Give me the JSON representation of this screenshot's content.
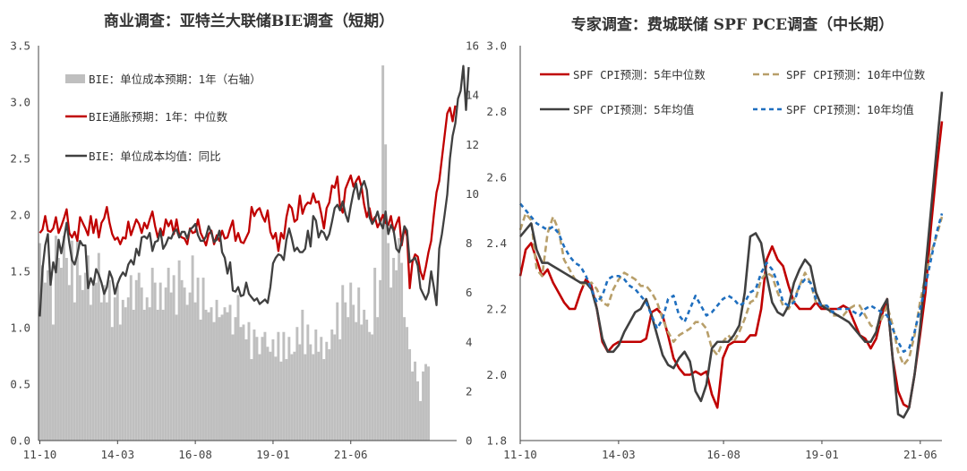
{
  "chart_data": [
    {
      "type": "bar+line",
      "title": "商业调查：亚特兰大联储BIE调查（短期）",
      "x_tick_labels": [
        "11-10",
        "14-03",
        "16-08",
        "19-01",
        "21-06"
      ],
      "x_range": [
        "2011-10",
        "2021-11"
      ],
      "y_left": {
        "ticks": [
          "0.0",
          "0.5",
          "1.0",
          "1.5",
          "2.0",
          "2.5",
          "3.0",
          "3.5"
        ],
        "ylim": [
          0,
          3.5
        ]
      },
      "y_right": {
        "ticks": [
          "0",
          "2",
          "4",
          "6",
          "8",
          "10",
          "12",
          "14",
          "16"
        ],
        "ylim": [
          0,
          16
        ]
      },
      "legend_position": "top-left",
      "series": [
        {
          "name": "BIE：单位成本预期：1年（右轴）",
          "kind": "bar",
          "axis": "right",
          "color": "#bfbfbf",
          "values": [
            8.0,
            7.1,
            6.4,
            6.9,
            6.6,
            4.7,
            8.3,
            7.4,
            7.0,
            8.3,
            7.4,
            6.3,
            8.1,
            5.6,
            8.1,
            6.7,
            6.1,
            6.8,
            7.5,
            5.5,
            6.4,
            6.4,
            7.6,
            5.6,
            6.3,
            5.6,
            6.5,
            4.6,
            5.8,
            6.3,
            4.7,
            5.7,
            5.4,
            5.8,
            6.7,
            5.3,
            6.5,
            6.8,
            6.2,
            5.3,
            5.8,
            5.4,
            7.0,
            6.4,
            5.3,
            6.4,
            5.3,
            6.2,
            7.0,
            6.0,
            6.7,
            5.1,
            7.3,
            6.5,
            6.2,
            5.5,
            6.0,
            7.5,
            5.6,
            6.6,
            4.9,
            6.6,
            5.3,
            5.2,
            5.4,
            4.8,
            5.7,
            5.0,
            5.1,
            5.4,
            5.2,
            5.5,
            4.3,
            5.0,
            5.9,
            4.6,
            4.7,
            4.1,
            4.8,
            3.3,
            4.5,
            4.2,
            3.5,
            4.2,
            4.4,
            3.8,
            3.6,
            4.1,
            3.4,
            4.4,
            3.2,
            4.4,
            3.3,
            4.2,
            3.5,
            3.6,
            4.6,
            3.9,
            5.3,
            3.5,
            4.7,
            3.9,
            3.5,
            4.5,
            3.6,
            4.2,
            3.3,
            4.0,
            3.7,
            4.5,
            4.3,
            5.6,
            4.1,
            6.3,
            5.6,
            5.0,
            6.4,
            5.5,
            4.8,
            6.2,
            4.7,
            5.3,
            4.9,
            4.4,
            4.3,
            7.0,
            5.0,
            6.5,
            15.2,
            12.0,
            8.0,
            6.2,
            7.4,
            6.9,
            8.2,
            7.2,
            5.0,
            4.6,
            3.7,
            2.8,
            3.2,
            2.4,
            1.6,
            2.8,
            3.1,
            3.0
          ]
        },
        {
          "name": "BIE通胀预期：1年：中位数",
          "kind": "line",
          "axis": "left",
          "color": "#c00000",
          "values": [
            1.84,
            1.87,
            1.99,
            1.86,
            1.85,
            1.88,
            1.98,
            1.84,
            1.9,
            1.97,
            2.05,
            1.84,
            1.8,
            1.85,
            1.77,
            1.98,
            1.93,
            1.88,
            1.82,
            1.99,
            1.84,
            1.96,
            1.8,
            1.93,
            1.97,
            2.07,
            1.93,
            1.83,
            1.78,
            1.8,
            1.74,
            1.8,
            1.79,
            1.94,
            1.82,
            1.89,
            1.96,
            1.92,
            1.84,
            1.93,
            1.88,
            1.96,
            2.03,
            1.9,
            1.8,
            1.88,
            1.82,
            1.96,
            1.9,
            1.95,
            1.83,
            1.96,
            1.82,
            1.8,
            1.79,
            1.74,
            1.88,
            1.84,
            1.85,
            1.96,
            1.84,
            1.79,
            1.73,
            1.83,
            1.86,
            1.74,
            1.82,
            1.77,
            1.86,
            1.79,
            1.8,
            1.88,
            1.95,
            1.77,
            1.84,
            1.76,
            1.75,
            1.8,
            1.85,
            2.07,
            1.99,
            2.04,
            2.06,
            1.99,
            1.94,
            2.04,
            1.85,
            1.79,
            1.84,
            1.68,
            1.84,
            1.79,
            1.98,
            2.09,
            2.06,
            1.94,
            1.96,
            2.17,
            2.01,
            2.08,
            2.11,
            2.1,
            2.19,
            2.11,
            2.12,
            2.01,
            1.88,
            2.06,
            2.11,
            2.26,
            2.24,
            2.34,
            2.08,
            2.02,
            2.23,
            2.29,
            2.35,
            2.25,
            2.3,
            2.34,
            2.25,
            2.09,
            1.98,
            2.06,
            1.94,
            1.98,
            1.89,
            1.94,
            2.0,
            1.93,
            1.91,
            1.99,
            1.85,
            1.92,
            1.98,
            1.73,
            1.88,
            1.81,
            1.35,
            1.58,
            1.65,
            1.63,
            1.5,
            1.43,
            1.54,
            1.67,
            1.77,
            2.0,
            2.2,
            2.3,
            2.5,
            2.7,
            2.9,
            2.95,
            2.83,
            2.97
          ]
        },
        {
          "name": "BIE：单位成本均值：同比",
          "kind": "line",
          "axis": "left",
          "color": "#404040",
          "values": [
            1.1,
            1.52,
            1.73,
            1.83,
            1.38,
            1.58,
            1.49,
            1.78,
            1.66,
            1.79,
            1.93,
            1.75,
            1.6,
            1.56,
            1.65,
            1.77,
            1.73,
            1.73,
            1.35,
            1.44,
            1.38,
            1.52,
            1.47,
            1.4,
            1.3,
            1.36,
            1.5,
            1.44,
            1.3,
            1.39,
            1.45,
            1.49,
            1.46,
            1.56,
            1.6,
            1.56,
            1.7,
            1.64,
            1.8,
            1.81,
            1.79,
            1.84,
            1.68,
            1.76,
            1.77,
            1.86,
            1.7,
            1.74,
            1.8,
            1.79,
            1.85,
            1.87,
            1.8,
            1.85,
            1.85,
            1.79,
            1.87,
            1.89,
            1.92,
            1.82,
            1.77,
            1.77,
            1.81,
            1.9,
            1.84,
            1.76,
            1.78,
            1.86,
            1.67,
            1.62,
            1.48,
            1.58,
            1.33,
            1.32,
            1.36,
            1.28,
            1.29,
            1.4,
            1.3,
            1.27,
            1.24,
            1.26,
            1.21,
            1.23,
            1.25,
            1.22,
            1.36,
            1.57,
            1.62,
            1.65,
            1.64,
            1.6,
            1.78,
            1.88,
            1.79,
            1.68,
            1.71,
            1.67,
            1.67,
            1.7,
            1.86,
            1.72,
            1.99,
            1.95,
            1.8,
            1.86,
            1.84,
            1.78,
            1.83,
            1.94,
            2.06,
            2.09,
            2.04,
            2.12,
            2.01,
            1.94,
            2.08,
            2.2,
            2.28,
            2.14,
            2.25,
            2.3,
            2.22,
            1.98,
            1.92,
            1.96,
            2.03,
            1.93,
            1.88,
            2.03,
            1.83,
            1.91,
            1.86,
            1.7,
            1.67,
            1.76,
            1.9,
            1.86,
            1.58,
            1.6,
            1.62,
            1.55,
            1.35,
            1.3,
            1.25,
            1.31,
            1.5,
            1.36,
            1.2,
            1.7,
            1.83,
            2.0,
            2.18,
            2.5,
            2.7,
            2.81,
            3.03,
            3.1,
            3.32,
            2.93,
            3.31
          ]
        }
      ]
    },
    {
      "type": "line",
      "title": "专家调查：费城联储 SPF PCE调查（中长期）",
      "x_tick_labels": [
        "11-10",
        "14-03",
        "16-08",
        "19-01",
        "21-06"
      ],
      "x_range": [
        "2011-10",
        "2021-09"
      ],
      "y": {
        "ticks": [
          "1.8",
          "2.0",
          "2.2",
          "2.4",
          "2.6",
          "2.8",
          "3.0"
        ],
        "ylim": [
          1.8,
          3.0
        ]
      },
      "legend_position": "top",
      "series": [
        {
          "name": "SPF CPI预测：5年中位数",
          "color": "#c00000",
          "dash": "solid",
          "values": [
            2.3,
            2.38,
            2.4,
            2.35,
            2.3,
            2.32,
            2.28,
            2.25,
            2.22,
            2.2,
            2.2,
            2.25,
            2.29,
            2.27,
            2.2,
            2.1,
            2.07,
            2.09,
            2.1,
            2.1,
            2.1,
            2.1,
            2.1,
            2.11,
            2.19,
            2.2,
            2.18,
            2.12,
            2.05,
            2.02,
            2.0,
            2.0,
            2.01,
            2.0,
            2.01,
            1.94,
            1.9,
            2.05,
            2.09,
            2.1,
            2.1,
            2.1,
            2.12,
            2.12,
            2.2,
            2.35,
            2.39,
            2.35,
            2.33,
            2.27,
            2.22,
            2.2,
            2.2,
            2.2,
            2.22,
            2.2,
            2.2,
            2.2,
            2.2,
            2.21,
            2.2,
            2.16,
            2.12,
            2.11,
            2.08,
            2.11,
            2.18,
            2.23,
            2.05,
            1.95,
            1.91,
            1.9,
            2.0,
            2.12,
            2.25,
            2.45,
            2.62,
            2.77
          ]
        },
        {
          "name": "SPF CPI预测：10年中位数",
          "color": "#b89f6a",
          "dash": "7,4",
          "values": [
            2.44,
            2.49,
            2.47,
            2.32,
            2.3,
            2.43,
            2.48,
            2.44,
            2.35,
            2.32,
            2.29,
            2.28,
            2.27,
            2.28,
            2.26,
            2.22,
            2.21,
            2.26,
            2.29,
            2.31,
            2.3,
            2.29,
            2.27,
            2.27,
            2.25,
            2.22,
            2.17,
            2.13,
            2.1,
            2.12,
            2.13,
            2.14,
            2.16,
            2.16,
            2.14,
            2.08,
            2.06,
            2.1,
            2.12,
            2.1,
            2.13,
            2.17,
            2.22,
            2.23,
            2.29,
            2.31,
            2.3,
            2.25,
            2.21,
            2.2,
            2.23,
            2.27,
            2.31,
            2.28,
            2.22,
            2.21,
            2.21,
            2.18,
            2.18,
            2.18,
            2.2,
            2.21,
            2.21,
            2.18,
            2.15,
            2.14,
            2.17,
            2.21,
            2.15,
            2.07,
            2.03,
            2.05,
            2.12,
            2.22,
            2.3,
            2.37,
            2.42,
            2.48
          ]
        },
        {
          "name": "SPF CPI预测：5年均值",
          "color": "#404040",
          "dash": "solid",
          "values": [
            2.42,
            2.44,
            2.46,
            2.38,
            2.34,
            2.34,
            2.33,
            2.32,
            2.31,
            2.3,
            2.29,
            2.28,
            2.28,
            2.26,
            2.2,
            2.11,
            2.07,
            2.07,
            2.09,
            2.13,
            2.16,
            2.19,
            2.2,
            2.23,
            2.18,
            2.12,
            2.06,
            2.03,
            2.02,
            2.05,
            2.07,
            2.04,
            1.95,
            1.92,
            1.97,
            2.08,
            2.1,
            2.1,
            2.1,
            2.12,
            2.15,
            2.25,
            2.42,
            2.43,
            2.4,
            2.3,
            2.22,
            2.19,
            2.18,
            2.21,
            2.28,
            2.32,
            2.35,
            2.33,
            2.25,
            2.21,
            2.2,
            2.19,
            2.18,
            2.17,
            2.16,
            2.14,
            2.12,
            2.1,
            2.1,
            2.13,
            2.2,
            2.23,
            2.05,
            1.88,
            1.87,
            1.9,
            2.0,
            2.14,
            2.32,
            2.5,
            2.68,
            2.86
          ]
        },
        {
          "name": "SPF CPI预测：10年均值",
          "color": "#1f6fbf",
          "dash": "5,4",
          "values": [
            2.52,
            2.5,
            2.48,
            2.46,
            2.45,
            2.44,
            2.45,
            2.43,
            2.39,
            2.36,
            2.34,
            2.33,
            2.3,
            2.26,
            2.22,
            2.24,
            2.29,
            2.3,
            2.3,
            2.29,
            2.27,
            2.26,
            2.24,
            2.22,
            2.18,
            2.14,
            2.17,
            2.23,
            2.24,
            2.18,
            2.16,
            2.2,
            2.24,
            2.21,
            2.18,
            2.19,
            2.21,
            2.23,
            2.24,
            2.23,
            2.21,
            2.22,
            2.25,
            2.26,
            2.31,
            2.34,
            2.32,
            2.28,
            2.22,
            2.21,
            2.22,
            2.27,
            2.29,
            2.28,
            2.23,
            2.21,
            2.21,
            2.19,
            2.2,
            2.2,
            2.2,
            2.19,
            2.18,
            2.2,
            2.21,
            2.2,
            2.19,
            2.18,
            2.14,
            2.1,
            2.07,
            2.08,
            2.13,
            2.2,
            2.27,
            2.35,
            2.43,
            2.49
          ]
        }
      ]
    }
  ]
}
